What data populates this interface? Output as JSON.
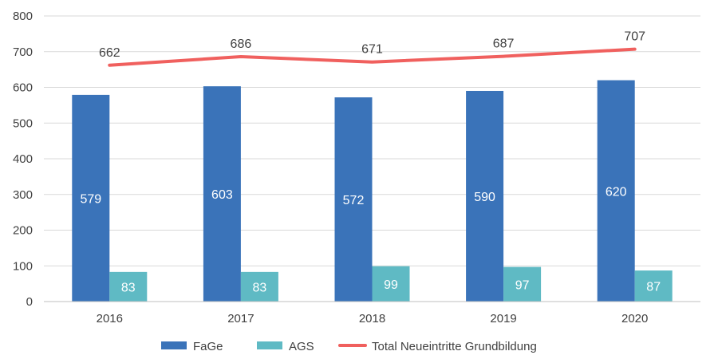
{
  "chart_data": {
    "type": "bar",
    "categories": [
      "2016",
      "2017",
      "2018",
      "2019",
      "2020"
    ],
    "series": [
      {
        "name": "FaGe",
        "type": "bar",
        "values": [
          579,
          603,
          572,
          590,
          620
        ],
        "color": "#3a73b9",
        "label_color": "#ffffff"
      },
      {
        "name": "AGS",
        "type": "bar",
        "values": [
          83,
          83,
          99,
          97,
          87
        ],
        "color": "#5fbac4",
        "label_color": "#ffffff"
      },
      {
        "name": "Total Neueintritte Grundbildung",
        "type": "line",
        "values": [
          662,
          686,
          671,
          687,
          707
        ],
        "color": "#f0605e",
        "label_color": "#404040"
      }
    ],
    "ylim": [
      0,
      800
    ],
    "yticks": [
      0,
      100,
      200,
      300,
      400,
      500,
      600,
      700,
      800
    ],
    "grid": true,
    "legend_position": "bottom",
    "title": "",
    "xlabel": "",
    "ylabel": ""
  }
}
